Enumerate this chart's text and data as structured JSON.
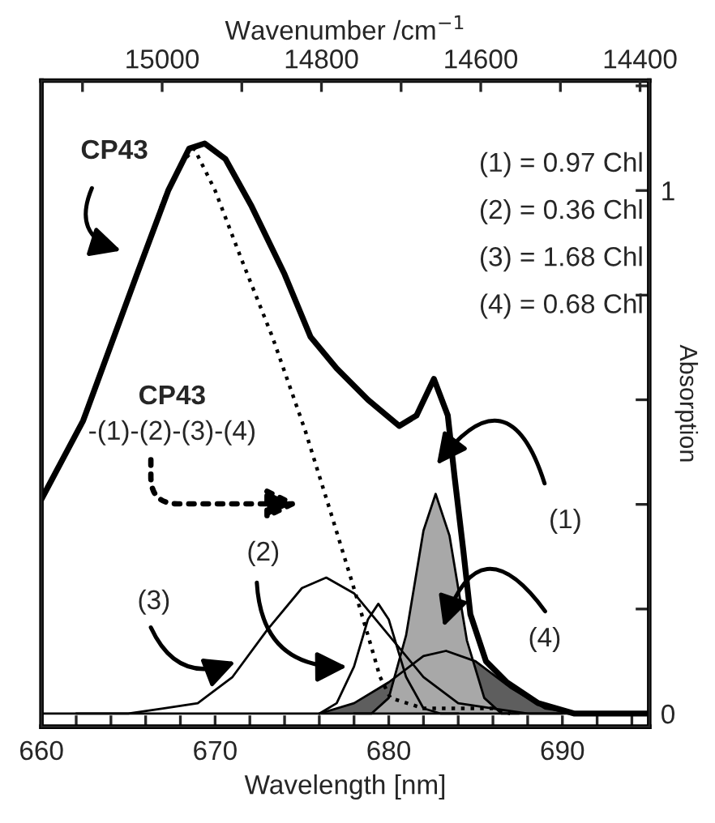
{
  "chart_data": {
    "type": "line",
    "xlabel": "Wavelength [nm]",
    "ylabel": "Absorption",
    "x2label": "Wavenumber /cm$^{−1}$",
    "xlim": [
      660,
      695
    ],
    "ylim": [
      -0.025,
      1.21
    ],
    "x2lim": [
      15151.5,
      14388.5
    ],
    "xticks": [
      660,
      {
        "value": 662,
        "label": null
      },
      {
        "value": 664,
        "label": null
      },
      {
        "value": 666,
        "label": null
      },
      {
        "value": 668,
        "label": null
      },
      670,
      {
        "value": 672,
        "label": null
      },
      {
        "value": 674,
        "label": null
      },
      {
        "value": 676,
        "label": null
      },
      {
        "value": 678,
        "label": null
      },
      680,
      {
        "value": 682,
        "label": null
      },
      {
        "value": 684,
        "label": null
      },
      {
        "value": 686,
        "label": null
      },
      {
        "value": 688,
        "label": null
      },
      690,
      {
        "value": 692,
        "label": null
      },
      {
        "value": 694,
        "label": null
      }
    ],
    "x2ticks": [
      {
        "value": 15100,
        "label": null
      },
      15000,
      {
        "value": 14900,
        "label": null
      },
      14800,
      {
        "value": 14700,
        "label": null
      },
      14600,
      {
        "value": 14500,
        "label": null
      },
      14400
    ],
    "yticks": [
      0,
      {
        "value": 0.2,
        "label": null
      },
      {
        "value": 0.4,
        "label": null
      },
      {
        "value": 0.6,
        "label": null
      },
      {
        "value": 0.8,
        "label": null
      },
      1,
      {
        "value": 1.2,
        "label": null
      }
    ],
    "grid": false,
    "legend": false,
    "ref_lines": [
      {
        "axis": "y",
        "value": 0,
        "label": null,
        "color": "#000000"
      }
    ],
    "series": [
      {
        "color": "#000000",
        "line_style": "solid",
        "x": [
          660,
          662.4,
          665.5,
          667.3,
          668.5,
          669.4,
          670.6,
          672.1,
          674.0,
          675.5,
          677.0,
          678.8,
          680.6,
          681.6,
          682.6,
          683.4,
          683.8,
          684.3,
          684.7,
          685.6,
          686.8,
          688.6,
          690.7,
          695
        ],
        "values": [
          0.41,
          0.56,
          0.84,
          1.0,
          1.08,
          1.09,
          1.06,
          0.97,
          0.84,
          0.72,
          0.66,
          0.6,
          0.55,
          0.57,
          0.64,
          0.57,
          0.45,
          0.31,
          0.19,
          0.1,
          0.06,
          0.02,
          0.0,
          0.0
        ]
      },
      {
        "color": "#000000",
        "line_style": "dotted",
        "x": [
          666,
          667,
          668,
          668.8,
          670,
          671.5,
          673.3,
          675.2,
          676.7,
          677.9,
          678.8,
          679.5,
          680.1,
          682,
          684,
          686,
          687
        ],
        "values": [
          0.88,
          0.98,
          1.05,
          1.08,
          1.0,
          0.87,
          0.72,
          0.54,
          0.38,
          0.25,
          0.15,
          0.07,
          0.03,
          0.01,
          0.01,
          0.01,
          0.0
        ]
      },
      {
        "type": "area",
        "color": "#5e5e5e",
        "x": [
          676,
          678,
          680,
          682,
          683.3,
          685,
          687,
          689,
          691,
          693
        ],
        "values": [
          0.0,
          0.02,
          0.06,
          0.11,
          0.12,
          0.1,
          0.05,
          0.01,
          0.0,
          0.0
        ]
      },
      {
        "type": "area",
        "color": "#a8a8a8",
        "x": [
          678,
          679,
          680,
          681,
          682,
          682.7,
          683.5,
          684.5,
          685.5,
          686.5,
          687.5
        ],
        "values": [
          0.0,
          0.0,
          0.03,
          0.15,
          0.35,
          0.42,
          0.34,
          0.14,
          0.03,
          0.0,
          0.0
        ]
      },
      {
        "color": "#000000",
        "line_style": "solid",
        "x": [
          676,
          677,
          678,
          678.8,
          679.4,
          680,
          681,
          682,
          683,
          684
        ],
        "values": [
          0.0,
          0.02,
          0.09,
          0.18,
          0.21,
          0.18,
          0.07,
          0.01,
          0.0,
          0.0
        ]
      },
      {
        "color": "#000000",
        "line_style": "solid",
        "x": [
          662,
          665,
          667,
          669,
          671,
          673,
          675,
          676.4,
          678,
          680,
          682,
          684,
          686,
          688,
          690
        ],
        "values": [
          0.0,
          0.0,
          0.01,
          0.02,
          0.07,
          0.16,
          0.24,
          0.26,
          0.23,
          0.15,
          0.07,
          0.02,
          0.01,
          0.0,
          0.0
        ]
      }
    ],
    "annotations": [
      "CP43",
      "CP43",
      "-(1)-(2)-(3)-(4)",
      "(1)",
      "(2)",
      "(3)",
      "(4)",
      "(1) = 0.97 Chl",
      "(2) = 0.36 Chl",
      "(3) = 1.68 Chl",
      "(4) = 0.68 Chl"
    ]
  }
}
